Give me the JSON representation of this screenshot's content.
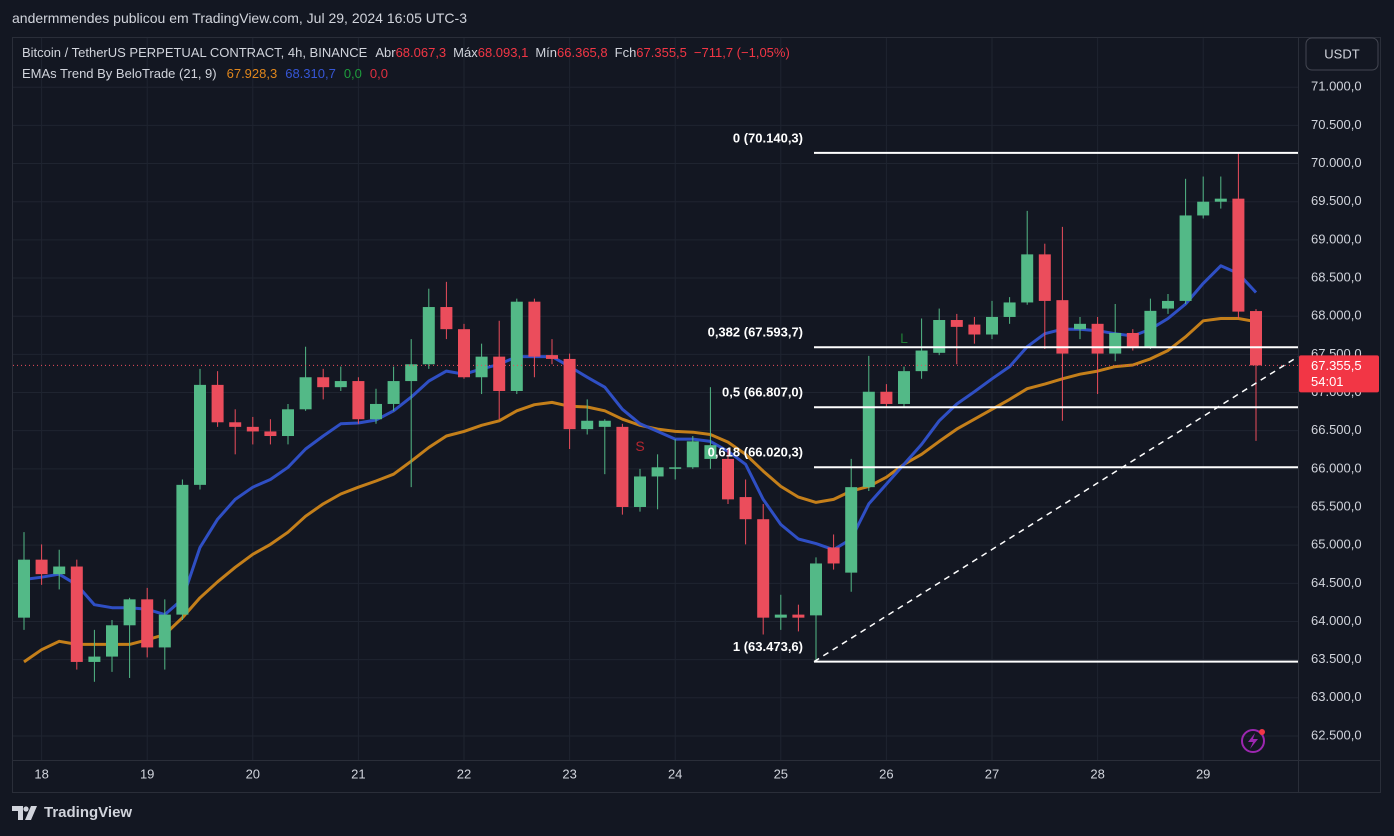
{
  "header": {
    "attribution": "andermmendes publicou em TradingView.com, Jul 29, 2024 16:05 UTC-3",
    "symbol": "Bitcoin / TetherUS PERPETUAL CONTRACT, 4h, BINANCE",
    "ohlc": [
      {
        "key": "Abr",
        "value": "68.067,3"
      },
      {
        "key": "Máx",
        "value": "68.093,1"
      },
      {
        "key": "Mín",
        "value": "66.365,8"
      },
      {
        "key": "Fch",
        "value": "67.355,5"
      }
    ],
    "change": "−711,7 (−1,05%)",
    "value_color": "#f23645"
  },
  "indicator": {
    "name": "EMAs Trend By BeloTrade (21, 9)",
    "values": [
      {
        "text": "67.928,3",
        "color": "#e0861c"
      },
      {
        "text": "68.310,7",
        "color": "#3656d6"
      },
      {
        "text": "0,0",
        "color": "#1e9c3c"
      },
      {
        "text": "0,0",
        "color": "#e03040"
      }
    ]
  },
  "currency": "USDT",
  "brand": "TradingView",
  "chart_data": {
    "type": "candlestick",
    "categories": [
      null,
      "18",
      null,
      null,
      null,
      null,
      null,
      "19",
      null,
      null,
      null,
      null,
      null,
      "20",
      null,
      null,
      null,
      null,
      null,
      "21",
      null,
      null,
      null,
      null,
      null,
      "22",
      null,
      null,
      null,
      null,
      null,
      "23",
      null,
      null,
      null,
      null,
      null,
      "24",
      null,
      null,
      null,
      null,
      null,
      "25",
      null,
      null,
      null,
      null,
      null,
      "26",
      null,
      null,
      null,
      null,
      null,
      "27",
      null,
      null,
      null,
      null,
      null,
      "28",
      null,
      null,
      null,
      null,
      null,
      "29",
      null,
      null,
      null
    ],
    "open": [
      64050,
      64810,
      64620,
      64720,
      63470,
      63540,
      63950,
      64290,
      63660,
      64090,
      65790,
      67100,
      66610,
      66550,
      66490,
      66430,
      66780,
      67200,
      67070,
      67150,
      66650,
      66850,
      67150,
      67370,
      68120,
      67830,
      67200,
      67470,
      67020,
      68190,
      67490,
      67440,
      66520,
      66550,
      66550,
      65500,
      65900,
      66000,
      66020,
      66130,
      66130,
      65630,
      65340,
      64050,
      64090,
      64080,
      64970,
      64640,
      65760,
      67010,
      66850,
      67280,
      67520,
      67950,
      67890,
      67760,
      67990,
      68180,
      68810,
      68210,
      67830,
      67900,
      67510,
      67780,
      67600,
      68100,
      68200,
      69320,
      69500,
      69540,
      68067.3
    ],
    "high": [
      65170,
      65010,
      64940,
      64810,
      63890,
      64020,
      64310,
      64440,
      64290,
      65860,
      67310,
      67280,
      66780,
      66680,
      66650,
      66850,
      67600,
      67310,
      67340,
      67200,
      67050,
      67340,
      67700,
      68360,
      68450,
      67900,
      67640,
      67940,
      68230,
      68230,
      67700,
      67510,
      66910,
      66650,
      66590,
      66000,
      66190,
      66390,
      66430,
      67070,
      66260,
      65860,
      65540,
      64350,
      64220,
      64840,
      65140,
      66130,
      67480,
      67110,
      67340,
      67970,
      68100,
      68030,
      67990,
      68200,
      68250,
      69380,
      68950,
      69170,
      67990,
      67990,
      68160,
      67830,
      68230,
      68290,
      69800,
      69830,
      69830,
      70140.3,
      68093.1
    ],
    "low": [
      63890,
      64480,
      64420,
      63370,
      63210,
      63340,
      63260,
      63530,
      63370,
      64020,
      65730,
      66550,
      66190,
      66320,
      66320,
      66320,
      66760,
      66910,
      67020,
      66590,
      66590,
      66760,
      65760,
      67310,
      67700,
      67180,
      66980,
      66650,
      66980,
      67200,
      67370,
      66260,
      66450,
      65930,
      65400,
      65440,
      65470,
      65860,
      66000,
      66000,
      65540,
      65010,
      63830,
      63890,
      63870,
      63473.6,
      64680,
      64390,
      65710,
      66810,
      66810,
      67180,
      67490,
      67370,
      67640,
      67700,
      67900,
      68150,
      67570,
      66630,
      67700,
      66980,
      67410,
      67550,
      67570,
      68030,
      68160,
      69280,
      69410,
      67970,
      66365.8
    ],
    "close": [
      64810,
      64620,
      64720,
      63470,
      63540,
      63950,
      64290,
      63660,
      64090,
      65790,
      67100,
      66610,
      66550,
      66490,
      66430,
      66780,
      67200,
      67070,
      67150,
      66650,
      66850,
      67150,
      67370,
      68120,
      67830,
      67200,
      67470,
      67020,
      68190,
      67470,
      67440,
      66520,
      66630,
      66630,
      65500,
      65900,
      66020,
      66020,
      66360,
      66310,
      65600,
      65340,
      64050,
      64090,
      64050,
      64760,
      64760,
      65760,
      67010,
      66850,
      67280,
      67550,
      67950,
      67860,
      67760,
      67990,
      68180,
      68810,
      68200,
      67510,
      67900,
      67510,
      67780,
      67600,
      68070,
      68200,
      69320,
      69500,
      69540,
      68060,
      67355.5
    ],
    "up_color": "#53b987",
    "down_color": "#eb4d5c",
    "series": [
      {
        "color": "#c47f1a",
        "values": [
          63470,
          63630,
          63740,
          63700,
          63700,
          63700,
          63700,
          63760,
          63830,
          64050,
          64310,
          64520,
          64710,
          64880,
          65010,
          65170,
          65380,
          65540,
          65670,
          65760,
          65840,
          65930,
          66100,
          66280,
          66430,
          66490,
          66570,
          66630,
          66760,
          66840,
          66870,
          66820,
          66810,
          66760,
          66650,
          66570,
          66520,
          66490,
          66480,
          66450,
          66350,
          66190,
          65970,
          65770,
          65630,
          65560,
          65600,
          65710,
          65770,
          65890,
          66060,
          66190,
          66360,
          66520,
          66650,
          66780,
          66910,
          67050,
          67110,
          67180,
          67240,
          67280,
          67340,
          67360,
          67440,
          67550,
          67730,
          67940,
          67970,
          67970,
          67928.3
        ]
      },
      {
        "color": "#2f4fc4",
        "values": [
          64550,
          64580,
          64620,
          64480,
          64220,
          64180,
          64180,
          64160,
          64090,
          64290,
          64970,
          65340,
          65600,
          65760,
          65860,
          66020,
          66260,
          66430,
          66590,
          66600,
          66640,
          66760,
          66940,
          67150,
          67280,
          67240,
          67310,
          67370,
          67470,
          67470,
          67470,
          67340,
          67200,
          67070,
          66780,
          66590,
          66490,
          66390,
          66390,
          66360,
          66230,
          66060,
          65600,
          65270,
          65080,
          65020,
          64940,
          65080,
          65540,
          65800,
          66060,
          66320,
          66630,
          66850,
          67010,
          67180,
          67340,
          67600,
          67770,
          67830,
          67830,
          67810,
          67770,
          67740,
          67830,
          67970,
          68160,
          68430,
          68660,
          68560,
          68310.7
        ]
      }
    ],
    "fib_levels": [
      {
        "value": 70140.3,
        "label": "0 (70.140,3)"
      },
      {
        "value": 67593.7,
        "label": "0,382 (67.593,7)"
      },
      {
        "value": 66807.0,
        "label": "0,5 (66.807,0)"
      },
      {
        "value": 66020.3,
        "label": "0,618 (66.020,3)"
      },
      {
        "value": 63473.6,
        "label": "1 (63.473,6)"
      }
    ],
    "trendline": [
      63473.6,
      67470
    ],
    "signals": [
      {
        "label": "S",
        "index": 35,
        "value": 66280,
        "color": "#b3262f"
      },
      {
        "label": "L",
        "index": 50,
        "value": 67700,
        "color": "#1f7a35"
      }
    ],
    "last_price": {
      "value": 67355.5,
      "label": "67.355,5"
    },
    "countdown": "54:01",
    "ylim": [
      62185,
      71645
    ],
    "yticks": [
      {
        "value": 62500,
        "label": "62.500,0"
      },
      {
        "value": 63000,
        "label": "63.000,0"
      },
      {
        "value": 63500,
        "label": "63.500,0"
      },
      {
        "value": 64000,
        "label": "64.000,0"
      },
      {
        "value": 64500,
        "label": "64.500,0"
      },
      {
        "value": 65000,
        "label": "65.000,0"
      },
      {
        "value": 65500,
        "label": "65.500,0"
      },
      {
        "value": 66000,
        "label": "66.000,0"
      },
      {
        "value": 66500,
        "label": "66.500,0"
      },
      {
        "value": 67000,
        "label": "67.000,0"
      },
      {
        "value": 67500,
        "label": "67.500,0"
      },
      {
        "value": 68000,
        "label": "68.000,0"
      },
      {
        "value": 68500,
        "label": "68.500,0"
      },
      {
        "value": 69000,
        "label": "69.000,0"
      },
      {
        "value": 69500,
        "label": "69.500,0"
      },
      {
        "value": 70000,
        "label": "70.000,0"
      },
      {
        "value": 70500,
        "label": "70.500,0"
      },
      {
        "value": 71000,
        "label": "71.000,0"
      }
    ],
    "grid": true
  }
}
